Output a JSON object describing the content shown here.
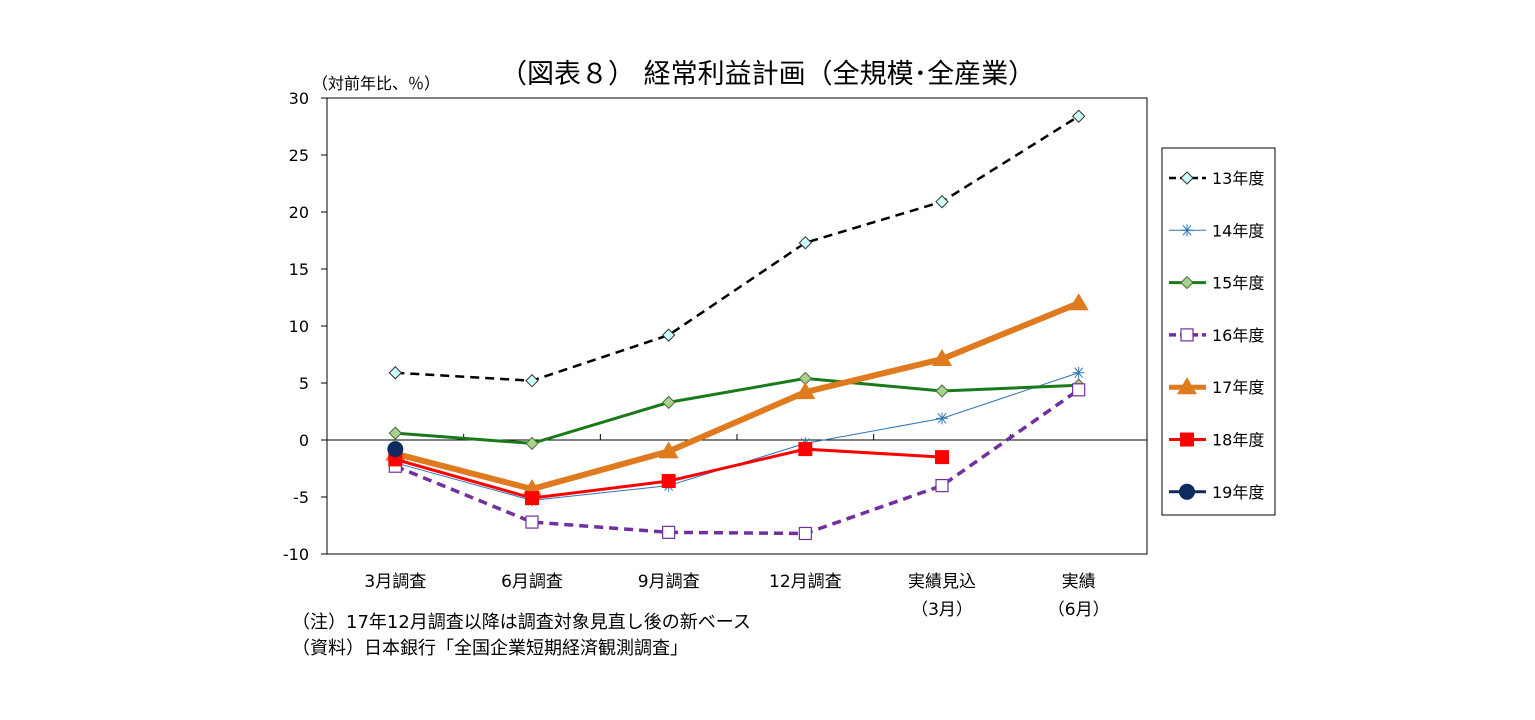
{
  "chart_data": {
    "type": "line",
    "title": "（図表８） 経常利益計画（全規模･全産業）",
    "ylabel": "（対前年比、％）",
    "xlabel": "",
    "categories": [
      "3月調査",
      "6月調査",
      "9月調査",
      "12月調査",
      "実績見込\n（3月）",
      "実績\n（6月）"
    ],
    "ylim": [
      -10,
      30
    ],
    "yticks": [
      -10,
      -5,
      0,
      5,
      10,
      15,
      20,
      25,
      30
    ],
    "grid": false,
    "legend_position": "right",
    "series": [
      {
        "name": "13年度",
        "color": "#000000",
        "dash": true,
        "marker": "diamond",
        "marker_fill": "#ccffff",
        "width": 2.5,
        "values": [
          5.9,
          5.2,
          9.2,
          17.3,
          20.9,
          28.4
        ]
      },
      {
        "name": "14年度",
        "color": "#2e75b6",
        "dash": false,
        "marker": "asterisk",
        "marker_fill": "none",
        "width": 1,
        "values": [
          -2.0,
          -5.3,
          -4.0,
          -0.3,
          1.9,
          5.9
        ]
      },
      {
        "name": "15年度",
        "color": "#1a7a1a",
        "dash": false,
        "marker": "diamond",
        "marker_fill": "#a9d18e",
        "width": 3,
        "values": [
          0.6,
          -0.3,
          3.3,
          5.4,
          4.3,
          4.8
        ]
      },
      {
        "name": "16年度",
        "color": "#7030a0",
        "dash": true,
        "marker": "square-open",
        "marker_fill": "#ffffff",
        "width": 3.5,
        "values": [
          -2.3,
          -7.2,
          -8.1,
          -8.2,
          -4.0,
          4.4
        ]
      },
      {
        "name": "17年度",
        "color": "#e07a1f",
        "dash": false,
        "marker": "triangle",
        "marker_fill": "#e07a1f",
        "width": 6,
        "values": [
          -1.2,
          -4.3,
          -1.0,
          4.2,
          7.1,
          12.0
        ]
      },
      {
        "name": "18年度",
        "color": "#ff0000",
        "dash": false,
        "marker": "square",
        "marker_fill": "#ff0000",
        "width": 3,
        "values": [
          -1.7,
          -5.1,
          -3.6,
          -0.8,
          -1.5,
          null
        ]
      },
      {
        "name": "19年度",
        "color": "#0d2b5e",
        "dash": false,
        "marker": "circle",
        "marker_fill": "#0d2b5e",
        "width": 3,
        "values": [
          -0.8,
          null,
          null,
          null,
          null,
          null
        ]
      }
    ]
  },
  "notes": [
    "（注）17年12月調査以降は調査対象見直し後の新ベース",
    "（資料）日本銀行「全国企業短期経済観測調査」"
  ]
}
